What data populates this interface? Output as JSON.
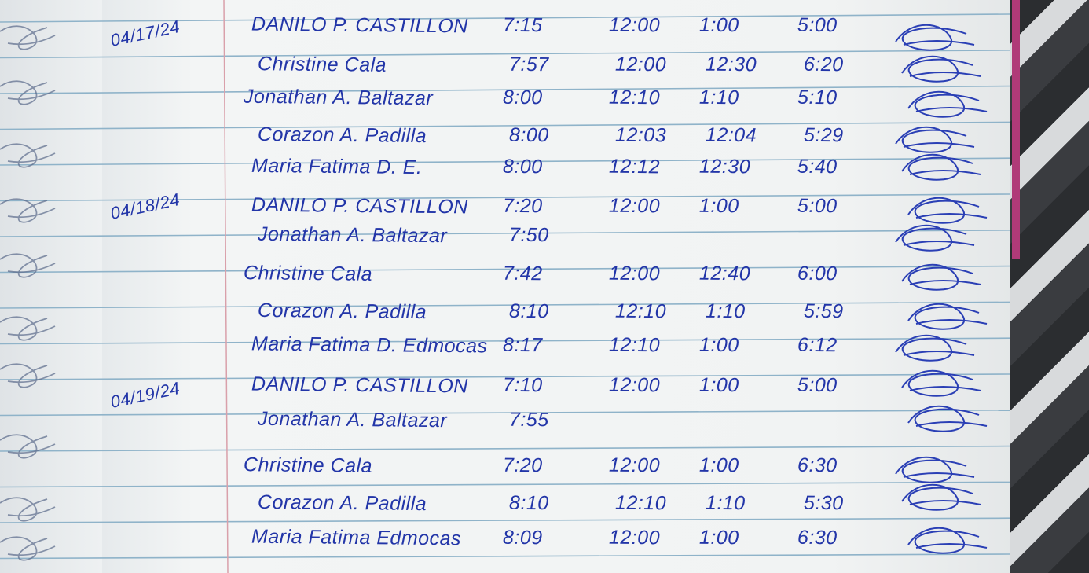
{
  "ink_color": "#2235a8",
  "days": [
    {
      "date": "04/17/24",
      "entries": [
        {
          "name": "DANILO P. CASTILLON",
          "time_in": "7:15",
          "lunch_out": "12:00",
          "lunch_in": "1:00",
          "time_out": "5:00"
        },
        {
          "name": "Christine Cala",
          "time_in": "7:57",
          "lunch_out": "12:00",
          "lunch_in": "12:30",
          "time_out": "6:20"
        },
        {
          "name": "Jonathan A. Baltazar",
          "time_in": "8:00",
          "lunch_out": "12:10",
          "lunch_in": "1:10",
          "time_out": "5:10"
        },
        {
          "name": "Corazon A. Padilla",
          "time_in": "8:00",
          "lunch_out": "12:03",
          "lunch_in": "12:04",
          "time_out": "5:29"
        },
        {
          "name": "Maria Fatima D. E.",
          "time_in": "8:00",
          "lunch_out": "12:12",
          "lunch_in": "12:30",
          "time_out": "5:40"
        }
      ]
    },
    {
      "date": "04/18/24",
      "entries": [
        {
          "name": "DANILO P. CASTILLON",
          "time_in": "7:20",
          "lunch_out": "12:00",
          "lunch_in": "1:00",
          "time_out": "5:00"
        },
        {
          "name": "Jonathan A. Baltazar",
          "time_in": "7:50",
          "lunch_out": "",
          "lunch_in": "",
          "time_out": ""
        },
        {
          "name": "Christine Cala",
          "time_in": "7:42",
          "lunch_out": "12:00",
          "lunch_in": "12:40",
          "time_out": "6:00"
        },
        {
          "name": "Corazon A. Padilla",
          "time_in": "8:10",
          "lunch_out": "12:10",
          "lunch_in": "1:10",
          "time_out": "5:59"
        },
        {
          "name": "Maria Fatima D. Edmocas",
          "time_in": "8:17",
          "lunch_out": "12:10",
          "lunch_in": "1:00",
          "time_out": "6:12"
        }
      ]
    },
    {
      "date": "04/19/24",
      "entries": [
        {
          "name": "DANILO P. CASTILLON",
          "time_in": "7:10",
          "lunch_out": "12:00",
          "lunch_in": "1:00",
          "time_out": "5:00"
        },
        {
          "name": "Jonathan A. Baltazar",
          "time_in": "7:55",
          "lunch_out": "",
          "lunch_in": "",
          "time_out": ""
        },
        {
          "name": "Christine Cala",
          "time_in": "7:20",
          "lunch_out": "12:00",
          "lunch_in": "1:00",
          "time_out": "6:30"
        },
        {
          "name": "Corazon A. Padilla",
          "time_in": "8:10",
          "lunch_out": "12:10",
          "lunch_in": "1:10",
          "time_out": "5:30"
        },
        {
          "name": "Maria Fatima Edmocas",
          "time_in": "8:09",
          "lunch_out": "12:00",
          "lunch_in": "1:00",
          "time_out": "6:30"
        }
      ]
    }
  ]
}
